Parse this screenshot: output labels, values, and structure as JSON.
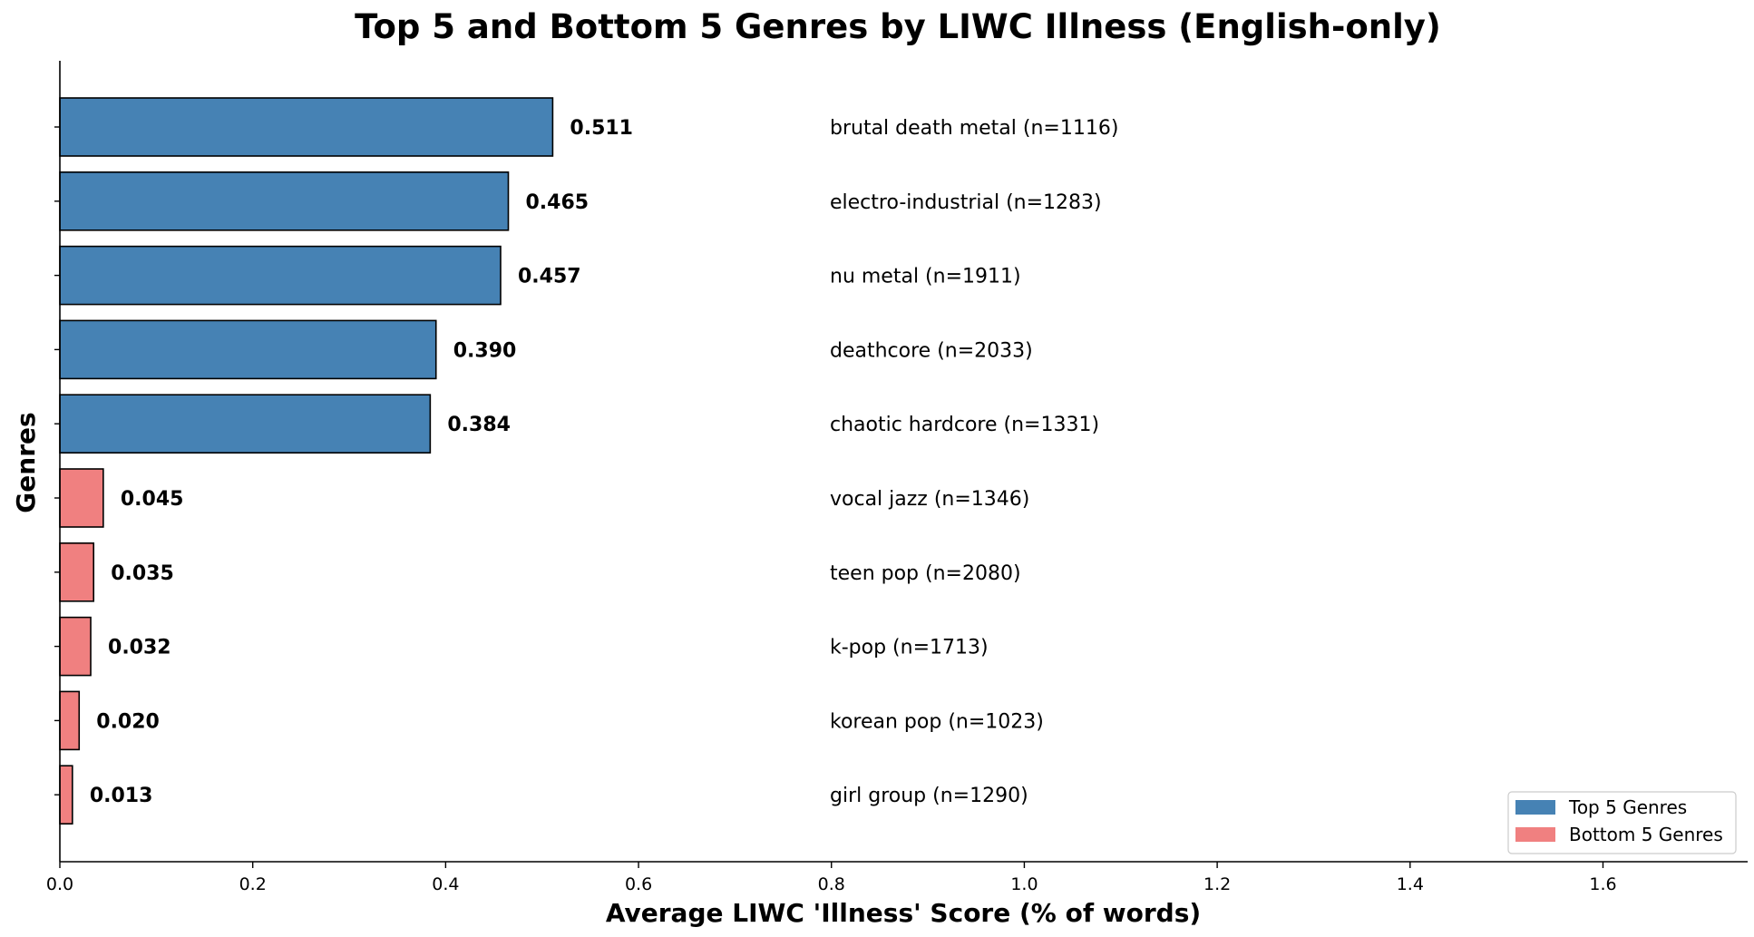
{
  "chart_data": {
    "type": "bar",
    "orientation": "horizontal",
    "title": "Top 5 and Bottom 5 Genres by LIWC Illness (English-only)",
    "xlabel": "Average LIWC 'Illness' Score (% of words)",
    "ylabel": "Genres",
    "xlim": [
      0,
      1.75
    ],
    "xticks": [
      "0.0",
      "0.2",
      "0.4",
      "0.6",
      "0.8",
      "1.0",
      "1.2",
      "1.4",
      "1.6"
    ],
    "grid": false,
    "legend_position": "bottom-right",
    "legend": [
      {
        "label": "Top 5 Genres",
        "color": "#4682b4"
      },
      {
        "label": "Bottom 5 Genres",
        "color": "#f08080"
      }
    ],
    "bars": [
      {
        "genre_label": "brutal death metal (n=1116)",
        "value": 0.511,
        "value_label": "0.511",
        "group": "top"
      },
      {
        "genre_label": "electro-industrial (n=1283)",
        "value": 0.465,
        "value_label": "0.465",
        "group": "top"
      },
      {
        "genre_label": "nu metal (n=1911)",
        "value": 0.457,
        "value_label": "0.457",
        "group": "top"
      },
      {
        "genre_label": "deathcore (n=2033)",
        "value": 0.39,
        "value_label": "0.390",
        "group": "top"
      },
      {
        "genre_label": "chaotic hardcore (n=1331)",
        "value": 0.384,
        "value_label": "0.384",
        "group": "top"
      },
      {
        "genre_label": "vocal jazz (n=1346)",
        "value": 0.045,
        "value_label": "0.045",
        "group": "bottom"
      },
      {
        "genre_label": "teen pop (n=2080)",
        "value": 0.035,
        "value_label": "0.035",
        "group": "bottom"
      },
      {
        "genre_label": "k-pop (n=1713)",
        "value": 0.032,
        "value_label": "0.032",
        "group": "bottom"
      },
      {
        "genre_label": "korean pop (n=1023)",
        "value": 0.02,
        "value_label": "0.020",
        "group": "bottom"
      },
      {
        "genre_label": "girl group (n=1290)",
        "value": 0.013,
        "value_label": "0.013",
        "group": "bottom"
      }
    ]
  }
}
